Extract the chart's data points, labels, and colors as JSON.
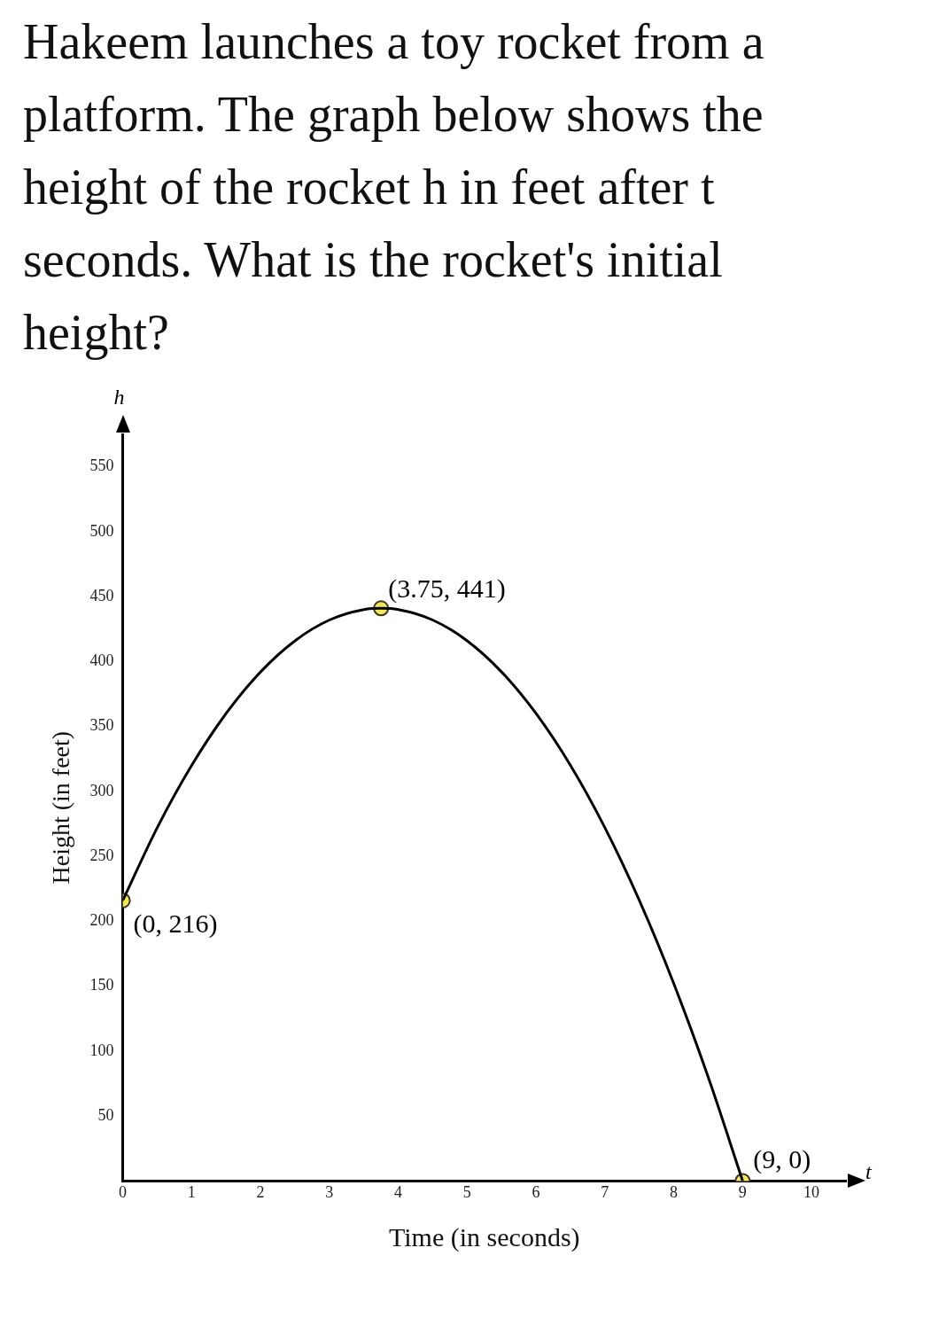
{
  "chart_data": {
    "type": "line",
    "title": "Hakeem launches a toy rocket from a platform. The graph below shows the height of the rocket h in feet after t seconds. What is the rocket's initial height?",
    "xlabel": "Time (in seconds)",
    "ylabel": "Height (in feet)",
    "annotations": [
      "h",
      "t"
    ],
    "xlim": [
      0,
      10.5
    ],
    "xticks": [
      0,
      1,
      2,
      3,
      4,
      5,
      6,
      7,
      8,
      9,
      10
    ],
    "ylim": [
      0,
      575
    ],
    "yticks": [
      50,
      100,
      150,
      200,
      250,
      300,
      350,
      400,
      450,
      500,
      550
    ],
    "grid": false,
    "legend": false,
    "series": [
      {
        "color": "#000000",
        "marker": "none",
        "x": [
          0,
          0.5,
          1,
          1.5,
          2,
          2.5,
          3,
          3.5,
          3.75,
          4,
          4.5,
          5,
          5.5,
          6,
          6.5,
          7,
          7.5,
          8,
          8.5,
          9
        ],
        "values": [
          216,
          272,
          320,
          360,
          392,
          416,
          432,
          440,
          441,
          440,
          432,
          416,
          392,
          360,
          320,
          272,
          216,
          152,
          80,
          0
        ]
      },
      {
        "type": "scatter",
        "color": "#f7e84a",
        "marker": "circle",
        "x": [
          0,
          3.75,
          9
        ],
        "values": [
          216,
          441,
          0
        ],
        "value_labels": [
          "(0, 216)",
          "(3.75, 441)",
          "(9, 0)"
        ]
      }
    ]
  }
}
